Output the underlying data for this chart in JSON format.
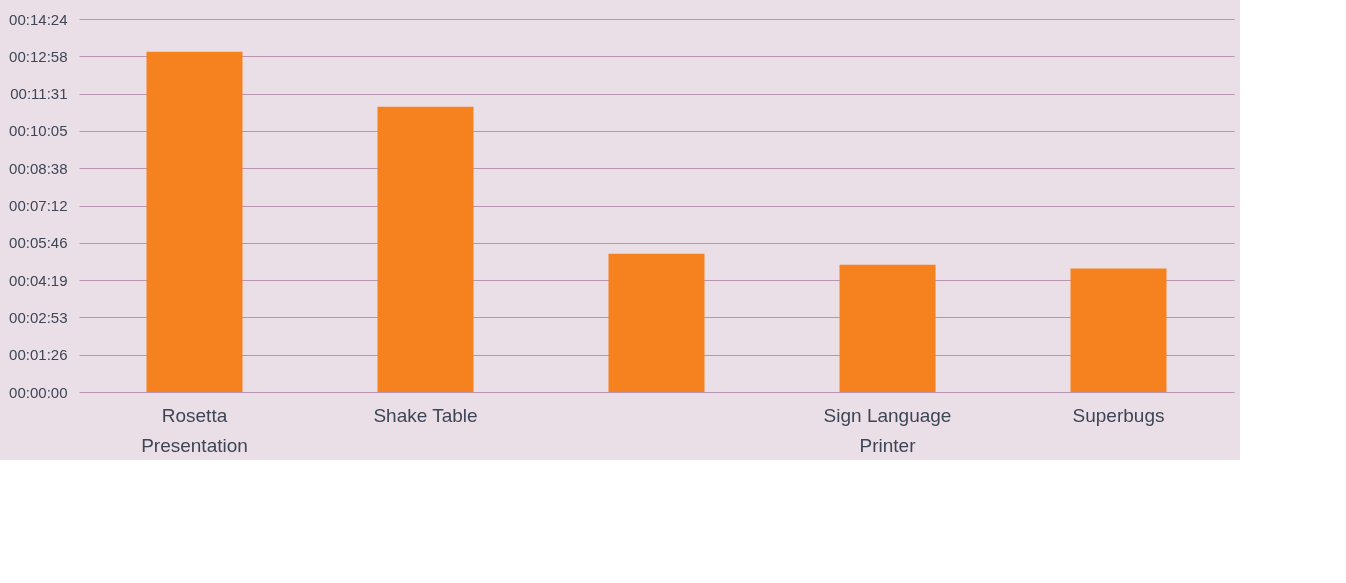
{
  "chart_data": {
    "type": "bar",
    "categories": [
      "Rosetta Presentation",
      "Shake Table",
      null,
      "Sign Language Printer",
      "Superbugs"
    ],
    "values": [
      788,
      661,
      320,
      295,
      286
    ],
    "color": "#f5821f",
    "ylim": [
      0,
      864
    ],
    "yticks": [
      {
        "value": 0,
        "label": "00:00:00"
      },
      {
        "value": 86.4,
        "label": "00:01:26"
      },
      {
        "value": 172.8,
        "label": "00:02:53"
      },
      {
        "value": 259.2,
        "label": "00:04:19"
      },
      {
        "value": 345.6,
        "label": "00:05:46"
      },
      {
        "value": 432,
        "label": "00:07:12"
      },
      {
        "value": 518.4,
        "label": "00:08:38"
      },
      {
        "value": 604.8,
        "label": "00:10:05"
      },
      {
        "value": 691.2,
        "label": "00:11:31"
      },
      {
        "value": 777.6,
        "label": "00:12:58"
      },
      {
        "value": 864,
        "label": "00:14:24"
      }
    ],
    "grid": "y"
  }
}
